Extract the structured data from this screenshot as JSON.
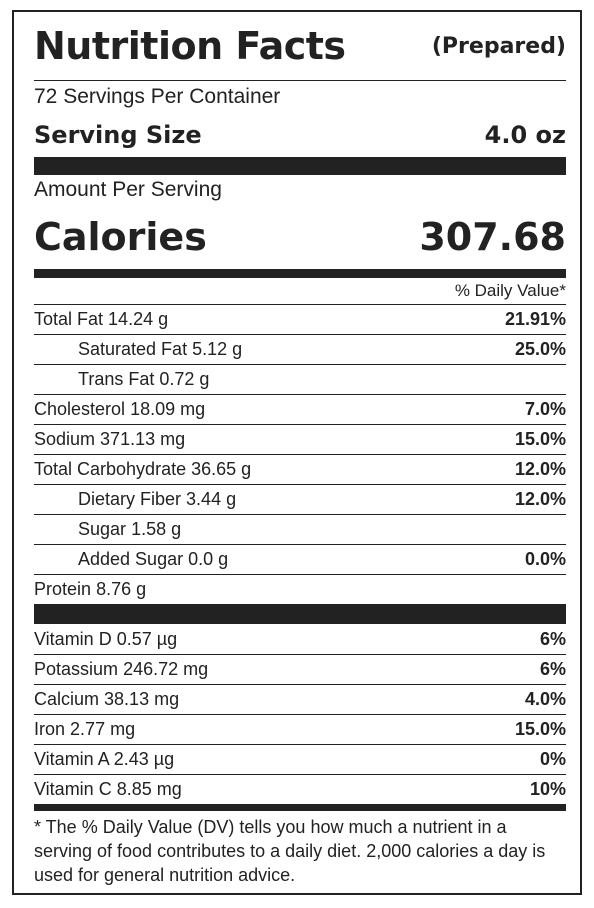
{
  "header": {
    "title": "Nutrition Facts",
    "note": "(Prepared)"
  },
  "servings": "72 Servings Per Container",
  "serving_size": {
    "label": "Serving Size",
    "value": "4.0 oz"
  },
  "amount_per_serving": "Amount Per Serving",
  "calories": {
    "label": "Calories",
    "value": "307.68"
  },
  "dv_header": "% Daily Value*",
  "nutrients": [
    {
      "name": "Total Fat",
      "amount": "14.24 g",
      "dv": "21.91%",
      "sub": [
        {
          "name": "Saturated Fat",
          "amount": "5.12 g",
          "dv": "25.0%"
        },
        {
          "name": "Trans Fat",
          "amount": "0.72 g"
        }
      ]
    },
    {
      "name": "Cholesterol",
      "amount": "18.09 mg",
      "dv": "7.0%"
    },
    {
      "name": "Sodium",
      "amount": "371.13 mg",
      "dv": "15.0%"
    },
    {
      "name": "Total Carbohydrate",
      "amount": "36.65 g",
      "dv": "12.0%",
      "sub": [
        {
          "name": "Dietary Fiber",
          "amount": "3.44 g",
          "dv": "12.0%"
        },
        {
          "name": "Sugar",
          "amount": "1.58 g"
        },
        {
          "name": "Added Sugar",
          "amount": "0.0 g",
          "dv": "0.0%"
        }
      ]
    },
    {
      "name": "Protein",
      "amount": "8.76 g"
    }
  ],
  "vitamins": [
    {
      "name": "Vitamin D",
      "amount": "0.57 µg",
      "dv": "6%"
    },
    {
      "name": "Potassium",
      "amount": "246.72 mg",
      "dv": "6%"
    },
    {
      "name": "Calcium",
      "amount": "38.13 mg",
      "dv": "4.0%"
    },
    {
      "name": "Iron",
      "amount": "2.77 mg",
      "dv": "15.0%"
    },
    {
      "name": "Vitamin A",
      "amount": "2.43 µg",
      "dv": "0%"
    },
    {
      "name": "Vitamin C",
      "amount": "8.85 mg",
      "dv": "10%"
    }
  ],
  "footnote": "* The % Daily Value (DV) tells you how much a nutrient in a serving of food contributes to a daily diet. 2,000 calories a day is used for general nutrition advice."
}
